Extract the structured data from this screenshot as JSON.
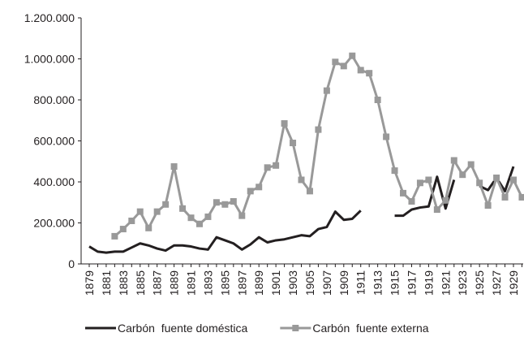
{
  "chart_data": {
    "type": "line",
    "categories": [
      "1879",
      null,
      "1881",
      null,
      "1883",
      null,
      "1885",
      null,
      "1887",
      null,
      "1889",
      null,
      "1891",
      null,
      "1893",
      null,
      "1895",
      null,
      "1897",
      null,
      "1899",
      null,
      "1901",
      null,
      "1903",
      null,
      "1905",
      null,
      "1907",
      null,
      "1909",
      null,
      "1911",
      null,
      "1913",
      null,
      "1915",
      null,
      "1917",
      null,
      "1919",
      null,
      "1921",
      null,
      "1923",
      null,
      "1925",
      null,
      "1927",
      null,
      "1929",
      null
    ],
    "series": [
      {
        "name": "Carbón  fuente doméstica",
        "color": "#231f20",
        "marker": "none",
        "values": [
          85000,
          60000,
          55000,
          60000,
          60000,
          80000,
          100000,
          90000,
          75000,
          65000,
          90000,
          90000,
          85000,
          75000,
          70000,
          130000,
          115000,
          100000,
          70000,
          95000,
          130000,
          105000,
          115000,
          120000,
          130000,
          140000,
          135000,
          170000,
          180000,
          255000,
          215000,
          220000,
          260000,
          null,
          null,
          null,
          235000,
          235000,
          265000,
          275000,
          280000,
          425000,
          270000,
          410000,
          null,
          null,
          380000,
          360000,
          420000,
          355000,
          475000,
          null
        ]
      },
      {
        "name": "Carbón  fuente externa",
        "color": "#999999",
        "marker": "square",
        "values": [
          null,
          null,
          null,
          135000,
          170000,
          210000,
          255000,
          175000,
          255000,
          290000,
          475000,
          270000,
          225000,
          195000,
          230000,
          300000,
          290000,
          305000,
          235000,
          355000,
          375000,
          470000,
          480000,
          685000,
          590000,
          410000,
          355000,
          655000,
          845000,
          985000,
          965000,
          1015000,
          945000,
          930000,
          800000,
          620000,
          455000,
          345000,
          305000,
          395000,
          410000,
          265000,
          310000,
          505000,
          435000,
          485000,
          395000,
          285000,
          420000,
          325000,
          410000,
          325000
        ]
      }
    ],
    "ylim": [
      0,
      1200000
    ],
    "yticks": [
      0,
      {
        "value": 200000,
        "label": "200.000"
      },
      {
        "value": 400000,
        "label": "400.000"
      },
      {
        "value": 600000,
        "label": "600.000"
      },
      {
        "value": 800000,
        "label": "800.000"
      },
      {
        "value": 1000000,
        "label": "1.000.000"
      },
      {
        "value": 1200000,
        "label": "1.200.000"
      }
    ],
    "grid": false,
    "legend": "bottom"
  }
}
